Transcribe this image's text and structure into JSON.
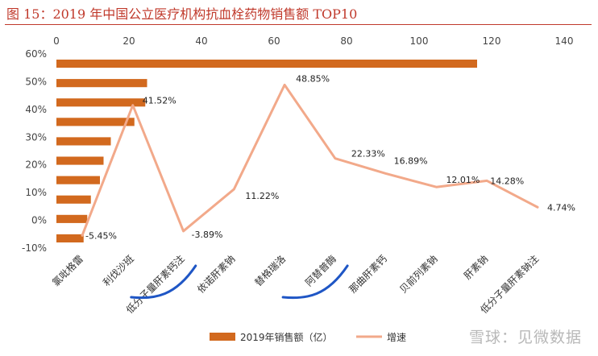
{
  "figure": {
    "title": "图 15：2019 年中国公立医疗机构抗血栓药物销售额 TOP10",
    "watermark": "雪球：见微数据"
  },
  "chart_data": {
    "type": "bar",
    "orientation": "horizontal",
    "categories": [
      "氯吡格雷",
      "利伐沙班",
      "低分子量肝素钙注",
      "依诺肝素钠",
      "替格瑞洛",
      "阿替普酶",
      "那曲肝素钙",
      "贝前列素钠",
      "肝素钠",
      "低分子量肝素钠注"
    ],
    "series": [
      {
        "name": "2019年销售额（亿）",
        "kind": "bar",
        "axis": "top",
        "color": "#d2691e",
        "values": [
          7.5,
          8.5,
          9.5,
          12.0,
          13.0,
          15.0,
          21.5,
          24.5,
          25.0,
          116.0
        ]
      },
      {
        "name": "增速",
        "kind": "line",
        "axis": "left",
        "color": "#f2a98a",
        "values": [
          -5.45,
          41.52,
          -3.89,
          11.22,
          48.85,
          22.33,
          16.89,
          12.01,
          14.28,
          4.74
        ],
        "labels": [
          "-5.45%",
          "41.52%",
          "-3.89%",
          "11.22%",
          "48.85%",
          "22.33%",
          "16.89%",
          "12.01%",
          "14.28%",
          "4.74%"
        ]
      }
    ],
    "x_top_axis": {
      "min": 0,
      "max": 140,
      "ticks": [
        "0",
        "20",
        "40",
        "60",
        "80",
        "100",
        "120",
        "140"
      ]
    },
    "y_left_axis": {
      "min": -10,
      "max": 60,
      "ticks": [
        "60%",
        "50%",
        "40%",
        "30%",
        "20%",
        "10%",
        "0%",
        "-10%"
      ]
    },
    "highlighted_categories": [
      "利伐沙班",
      "替格瑞洛"
    ],
    "highlight_color": "#1f56c5",
    "legend": [
      "2019年销售额（亿）",
      "增速"
    ],
    "legend_position": "bottom"
  }
}
